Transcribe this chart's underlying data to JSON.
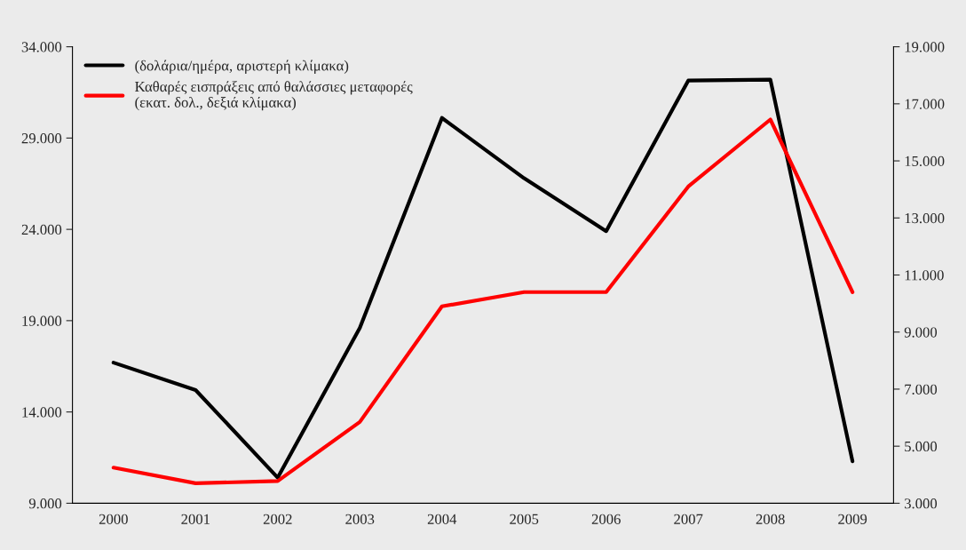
{
  "chart_data": {
    "type": "line",
    "categories": [
      "2000",
      "2001",
      "2002",
      "2003",
      "2004",
      "2005",
      "2006",
      "2007",
      "2008",
      "2009"
    ],
    "series": [
      {
        "name": "(δολάρια/ημέρα, αριστερή κλίμακα)",
        "color": "#000000",
        "values": [
          16700,
          15200,
          10400,
          18600,
          30100,
          26800,
          23900,
          32150,
          32200,
          11300
        ]
      },
      {
        "name": "Καθαρές εισπράξεις από θαλάσσιες μεταφορές (εκατ. δολ., δεξιά κλίμακα)",
        "color": "#ff0000",
        "axis": "y2",
        "values": [
          4250,
          3700,
          3780,
          5850,
          9900,
          10400,
          10400,
          14100,
          16450,
          10400
        ]
      }
    ],
    "ylim": [
      9000,
      34000
    ],
    "yticks": [
      {
        "value": 9000,
        "label": "9.000"
      },
      {
        "value": 14000,
        "label": "14.000"
      },
      {
        "value": 19000,
        "label": "19.000"
      },
      {
        "value": 24000,
        "label": "24.000"
      },
      {
        "value": 29000,
        "label": "29.000"
      },
      {
        "value": 34000,
        "label": "34.000"
      }
    ],
    "y2lim": [
      3000,
      19000
    ],
    "y2ticks": [
      {
        "value": 3000,
        "label": "3.000"
      },
      {
        "value": 5000,
        "label": "5.000"
      },
      {
        "value": 7000,
        "label": "7.000"
      },
      {
        "value": 9000,
        "label": "9.000"
      },
      {
        "value": 11000,
        "label": "11.000"
      },
      {
        "value": 13000,
        "label": "13.000"
      },
      {
        "value": 15000,
        "label": "15.000"
      },
      {
        "value": 17000,
        "label": "17.000"
      },
      {
        "value": 19000,
        "label": "19.000"
      }
    ],
    "legend": "top left",
    "grid": false,
    "marker": "none",
    "line_style": "solid"
  }
}
